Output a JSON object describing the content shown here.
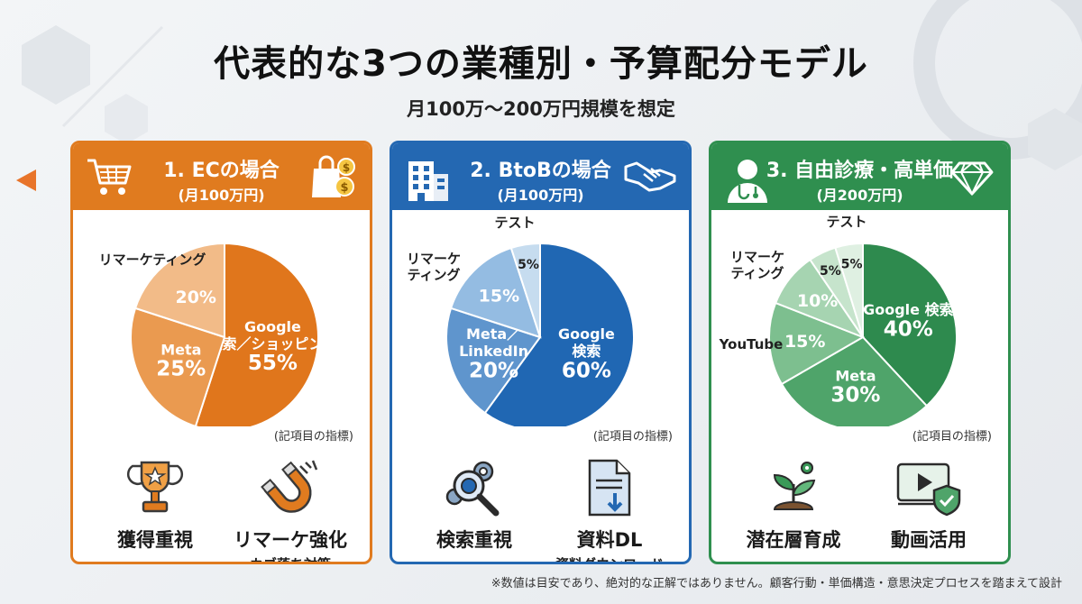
{
  "header": {
    "title": "代表的な3つの業種別・予算配分モデル",
    "subtitle": "月100万〜200万円規模を想定"
  },
  "colors": {
    "ec": "#e07b1f",
    "btob": "#2468b2",
    "clinic": "#2f8f4f"
  },
  "cards": [
    {
      "title": "1. ECの場合",
      "budget": "(月100万円)",
      "note": "(記項目の指標)",
      "features": [
        {
          "icon": "trophy-icon",
          "main": "獲得重視",
          "sub": ""
        },
        {
          "icon": "magnet-icon",
          "main": "リマーケ強化",
          "sub": "カゴ落ち対策"
        }
      ]
    },
    {
      "title": "2. BtoBの場合",
      "budget": "(月100万円)",
      "note": "(記項目の指標)",
      "features": [
        {
          "icon": "search-gears-icon",
          "main": "検索重視",
          "sub": ""
        },
        {
          "icon": "document-download-icon",
          "main": "資料DL",
          "sub": "資料ダウンロード"
        }
      ]
    },
    {
      "title": "3. 自由診療・高単価",
      "budget": "(月200万円)",
      "note": "(記項目の指標)",
      "features": [
        {
          "icon": "sprout-icon",
          "main": "潜在層育成",
          "sub": ""
        },
        {
          "icon": "video-shield-icon",
          "main": "動画活用",
          "sub": ""
        }
      ]
    }
  ],
  "footer": "※数値は目安であり、絶対的な正解ではありません。顧客行動・単価構造・意思決定プロセスを踏まえて設計",
  "chart_data": [
    {
      "type": "pie",
      "title": "1. ECの場合 (月100万円)",
      "unit": "%",
      "slices": [
        {
          "label": "Google\n検索／ショッピング",
          "value": 55,
          "color": "#e0761c",
          "text_color": "#ffffff"
        },
        {
          "label": "Meta",
          "value": 25,
          "color": "#ea9a50",
          "text_color": "#ffffff"
        },
        {
          "label": "リマーケティング",
          "value": 20,
          "color": "#f2bb88",
          "text_color": "#ffffff"
        }
      ]
    },
    {
      "type": "pie",
      "title": "2. BtoBの場合 (月100万円)",
      "unit": "%",
      "slices": [
        {
          "label": "Google\n検索",
          "value": 60,
          "color": "#2067b3",
          "text_color": "#ffffff"
        },
        {
          "label": "Meta／\nLinkedIn",
          "value": 20,
          "color": "#5f95cd",
          "text_color": "#ffffff"
        },
        {
          "label": "リマーケ\nティング",
          "value": 15,
          "color": "#94bce2",
          "text_color": "#ffffff"
        },
        {
          "label": "テスト",
          "value": 5,
          "color": "#c6dcef",
          "text_color": "#1f1f1f"
        }
      ]
    },
    {
      "type": "pie",
      "title": "3. 自由診療・高単価 (月200万円)",
      "unit": "%",
      "slices": [
        {
          "label": "Google 検索",
          "value": 40,
          "color": "#2e8a4e",
          "text_color": "#ffffff"
        },
        {
          "label": "Meta",
          "value": 30,
          "color": "#4fa46a",
          "text_color": "#ffffff"
        },
        {
          "label": "YouTube",
          "value": 15,
          "color": "#7dbf8f",
          "text_color": "#ffffff"
        },
        {
          "label": "リマーケ\nティング",
          "value": 10,
          "color": "#a6d4b1",
          "text_color": "#ffffff"
        },
        {
          "label": "",
          "value": 5,
          "color": "#c6e4cc",
          "text_color": "#1f1f1f"
        },
        {
          "label": "テスト",
          "value": 5,
          "color": "#dff0e2",
          "text_color": "#1f1f1f"
        }
      ]
    }
  ]
}
